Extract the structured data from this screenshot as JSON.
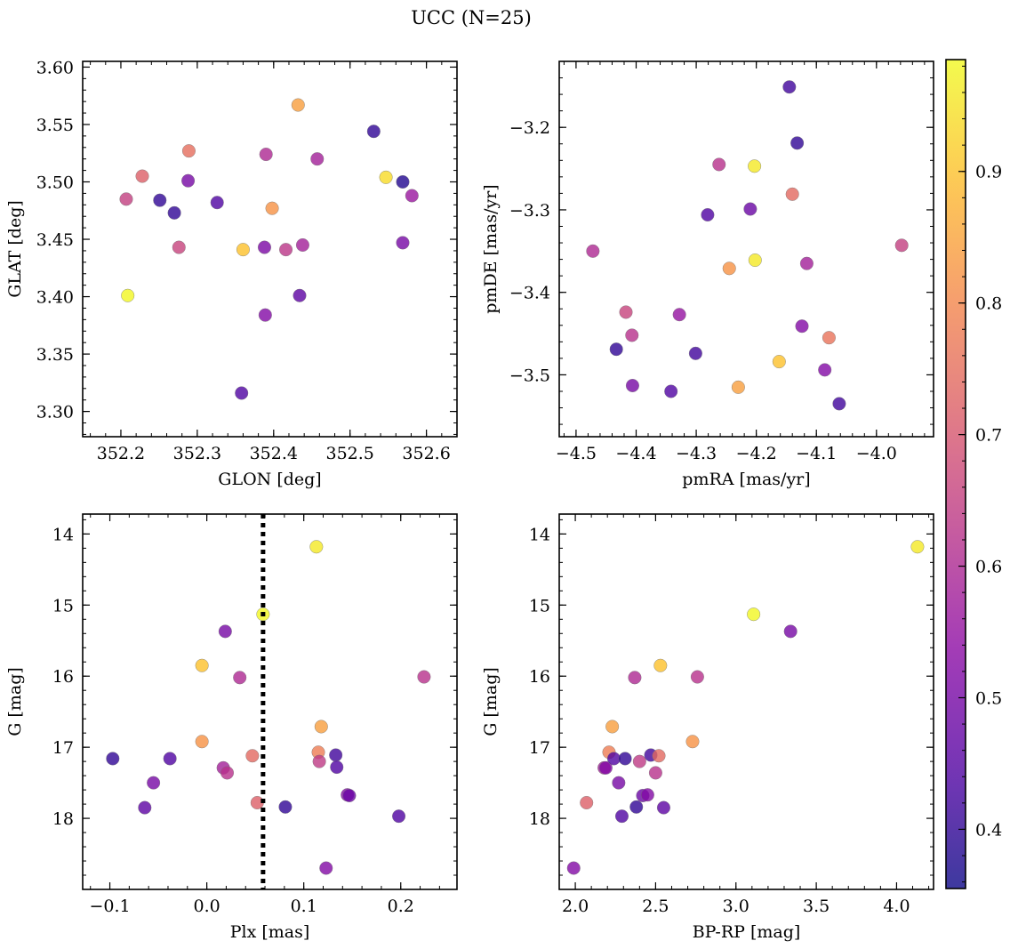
{
  "figure": {
    "title": "UCC (N=25)"
  },
  "colorbar": {
    "min": 0.355,
    "max": 0.985,
    "ticks": [
      0.4,
      0.5,
      0.6,
      0.7,
      0.8,
      0.9
    ],
    "tick_labels": [
      "0.4",
      "0.5",
      "0.6",
      "0.7",
      "0.8",
      "0.9"
    ],
    "colormap": "plasma",
    "colormap_stops": [
      "#0d0887",
      "#5302a3",
      "#8b0aa5",
      "#b83289",
      "#db5c68",
      "#f48849",
      "#febd2a",
      "#f0f921"
    ],
    "marker_alpha": 0.8
  },
  "chart_data": [
    {
      "type": "scatter",
      "name": "GLON-GLAT",
      "xlabel": "GLON [deg]",
      "ylabel": "GLAT [deg]",
      "xlim": [
        352.15,
        352.64
      ],
      "ylim": [
        3.278,
        3.605
      ],
      "y_inverted": false,
      "xticks": [
        352.2,
        352.3,
        352.4,
        352.5,
        352.6
      ],
      "xtick_labels": [
        "352.2",
        "352.3",
        "352.4",
        "352.5",
        "352.6"
      ],
      "yticks": [
        3.3,
        3.35,
        3.4,
        3.45,
        3.5,
        3.55,
        3.6
      ],
      "ytick_labels": [
        "3.30",
        "3.35",
        "3.40",
        "3.45",
        "3.50",
        "3.55",
        "3.60"
      ],
      "xminor": 0.02,
      "yminor": 0.01,
      "vline": null,
      "points": [
        {
          "x": 352.207,
          "y": 3.485,
          "c": 0.65
        },
        {
          "x": 352.228,
          "y": 3.505,
          "c": 0.72
        },
        {
          "x": 352.251,
          "y": 3.484,
          "c": 0.4
        },
        {
          "x": 352.27,
          "y": 3.473,
          "c": 0.4
        },
        {
          "x": 352.276,
          "y": 3.443,
          "c": 0.66
        },
        {
          "x": 352.288,
          "y": 3.501,
          "c": 0.5
        },
        {
          "x": 352.289,
          "y": 3.527,
          "c": 0.75
        },
        {
          "x": 352.209,
          "y": 3.401,
          "c": 0.98
        },
        {
          "x": 352.326,
          "y": 3.482,
          "c": 0.44
        },
        {
          "x": 352.36,
          "y": 3.441,
          "c": 0.9
        },
        {
          "x": 352.358,
          "y": 3.316,
          "c": 0.44
        },
        {
          "x": 352.389,
          "y": 3.384,
          "c": 0.52
        },
        {
          "x": 352.388,
          "y": 3.443,
          "c": 0.51
        },
        {
          "x": 352.39,
          "y": 3.524,
          "c": 0.6
        },
        {
          "x": 352.398,
          "y": 3.477,
          "c": 0.82
        },
        {
          "x": 352.416,
          "y": 3.441,
          "c": 0.63
        },
        {
          "x": 352.432,
          "y": 3.567,
          "c": 0.84
        },
        {
          "x": 352.434,
          "y": 3.401,
          "c": 0.46
        },
        {
          "x": 352.438,
          "y": 3.445,
          "c": 0.58
        },
        {
          "x": 352.457,
          "y": 3.52,
          "c": 0.58
        },
        {
          "x": 352.531,
          "y": 3.544,
          "c": 0.4
        },
        {
          "x": 352.547,
          "y": 3.504,
          "c": 0.94
        },
        {
          "x": 352.569,
          "y": 3.5,
          "c": 0.38
        },
        {
          "x": 352.569,
          "y": 3.447,
          "c": 0.5
        },
        {
          "x": 352.581,
          "y": 3.488,
          "c": 0.56
        }
      ]
    },
    {
      "type": "scatter",
      "name": "pmRA-pmDE",
      "xlabel": "pmRA [mas/yr]",
      "ylabel": "pmDE [mas/yr]",
      "xlim": [
        -4.528,
        -3.905
      ],
      "ylim": [
        -3.575,
        -3.12
      ],
      "y_inverted": false,
      "xticks": [
        -4.5,
        -4.4,
        -4.3,
        -4.2,
        -4.1,
        -4.0
      ],
      "xtick_labels": [
        "−4.5",
        "−4.4",
        "−4.3",
        "−4.2",
        "−4.1",
        "−4.0"
      ],
      "yticks": [
        -3.5,
        -3.4,
        -3.3,
        -3.2
      ],
      "ytick_labels": [
        "−3.5",
        "−3.4",
        "−3.3",
        "−3.2"
      ],
      "xminor": 0.02,
      "yminor": 0.02,
      "vline": null,
      "points": [
        {
          "x": -4.472,
          "y": -3.35,
          "c": 0.6
        },
        {
          "x": -4.433,
          "y": -3.469,
          "c": 0.4
        },
        {
          "x": -4.417,
          "y": -3.424,
          "c": 0.66
        },
        {
          "x": -4.407,
          "y": -3.452,
          "c": 0.62
        },
        {
          "x": -4.406,
          "y": -3.513,
          "c": 0.5
        },
        {
          "x": -4.342,
          "y": -3.52,
          "c": 0.44
        },
        {
          "x": -4.328,
          "y": -3.427,
          "c": 0.55
        },
        {
          "x": -4.301,
          "y": -3.474,
          "c": 0.42
        },
        {
          "x": -4.281,
          "y": -3.306,
          "c": 0.44
        },
        {
          "x": -4.262,
          "y": -3.245,
          "c": 0.62
        },
        {
          "x": -4.245,
          "y": -3.371,
          "c": 0.82
        },
        {
          "x": -4.23,
          "y": -3.515,
          "c": 0.84
        },
        {
          "x": -4.21,
          "y": -3.299,
          "c": 0.48
        },
        {
          "x": -4.203,
          "y": -3.247,
          "c": 0.96
        },
        {
          "x": -4.202,
          "y": -3.361,
          "c": 0.96
        },
        {
          "x": -4.162,
          "y": -3.484,
          "c": 0.9
        },
        {
          "x": -4.145,
          "y": -3.151,
          "c": 0.42
        },
        {
          "x": -4.14,
          "y": -3.281,
          "c": 0.74
        },
        {
          "x": -4.132,
          "y": -3.219,
          "c": 0.4
        },
        {
          "x": -4.124,
          "y": -3.441,
          "c": 0.52
        },
        {
          "x": -4.116,
          "y": -3.365,
          "c": 0.58
        },
        {
          "x": -4.086,
          "y": -3.494,
          "c": 0.52
        },
        {
          "x": -4.079,
          "y": -3.455,
          "c": 0.76
        },
        {
          "x": -4.062,
          "y": -3.535,
          "c": 0.42
        },
        {
          "x": -3.958,
          "y": -3.343,
          "c": 0.65
        }
      ]
    },
    {
      "type": "scatter",
      "name": "Plx-G",
      "xlabel": "Plx [mas]",
      "ylabel": "G [mag]",
      "xlim": [
        -0.128,
        0.258
      ],
      "ylim": [
        13.72,
        19.0
      ],
      "y_inverted": true,
      "xticks": [
        -0.1,
        0.0,
        0.1,
        0.2
      ],
      "xtick_labels": [
        "−0.1",
        "0.0",
        "0.1",
        "0.2"
      ],
      "yticks": [
        14,
        15,
        16,
        17,
        18
      ],
      "ytick_labels": [
        "14",
        "15",
        "16",
        "17",
        "18"
      ],
      "xminor": 0.02,
      "yminor": 0.2,
      "vline": 0.058,
      "points": [
        {
          "x": -0.097,
          "y": 17.16,
          "c": 0.4
        },
        {
          "x": -0.064,
          "y": 17.85,
          "c": 0.46
        },
        {
          "x": -0.055,
          "y": 17.5,
          "c": 0.5
        },
        {
          "x": -0.038,
          "y": 17.16,
          "c": 0.44
        },
        {
          "x": -0.005,
          "y": 15.85,
          "c": 0.9
        },
        {
          "x": -0.005,
          "y": 16.92,
          "c": 0.82
        },
        {
          "x": 0.017,
          "y": 17.29,
          "c": 0.58
        },
        {
          "x": 0.019,
          "y": 15.37,
          "c": 0.5
        },
        {
          "x": 0.021,
          "y": 17.36,
          "c": 0.62
        },
        {
          "x": 0.034,
          "y": 16.02,
          "c": 0.6
        },
        {
          "x": 0.047,
          "y": 17.12,
          "c": 0.74
        },
        {
          "x": 0.052,
          "y": 17.78,
          "c": 0.72
        },
        {
          "x": 0.058,
          "y": 15.13,
          "c": 0.98
        },
        {
          "x": 0.081,
          "y": 17.84,
          "c": 0.4
        },
        {
          "x": 0.113,
          "y": 14.18,
          "c": 0.96
        },
        {
          "x": 0.115,
          "y": 17.07,
          "c": 0.78
        },
        {
          "x": 0.116,
          "y": 17.2,
          "c": 0.64
        },
        {
          "x": 0.118,
          "y": 16.71,
          "c": 0.84
        },
        {
          "x": 0.123,
          "y": 18.7,
          "c": 0.52
        },
        {
          "x": 0.133,
          "y": 17.11,
          "c": 0.42
        },
        {
          "x": 0.134,
          "y": 17.28,
          "c": 0.44
        },
        {
          "x": 0.145,
          "y": 17.67,
          "c": 0.52
        },
        {
          "x": 0.147,
          "y": 17.68,
          "c": 0.48
        },
        {
          "x": 0.198,
          "y": 17.97,
          "c": 0.44
        },
        {
          "x": 0.224,
          "y": 16.01,
          "c": 0.62
        }
      ]
    },
    {
      "type": "scatter",
      "name": "BPRP-G",
      "xlabel": "BP-RP [mag]",
      "ylabel": "G [mag]",
      "xlim": [
        1.9,
        4.23
      ],
      "ylim": [
        13.72,
        19.0
      ],
      "y_inverted": true,
      "xticks": [
        2.0,
        2.5,
        3.0,
        3.5,
        4.0
      ],
      "xtick_labels": [
        "2.0",
        "2.5",
        "3.0",
        "3.5",
        "4.0"
      ],
      "yticks": [
        14,
        15,
        16,
        17,
        18
      ],
      "ytick_labels": [
        "14",
        "15",
        "16",
        "17",
        "18"
      ],
      "xminor": 0.1,
      "yminor": 0.2,
      "vline": null,
      "points": [
        {
          "x": 1.99,
          "y": 18.7,
          "c": 0.52
        },
        {
          "x": 2.07,
          "y": 17.78,
          "c": 0.72
        },
        {
          "x": 2.18,
          "y": 17.29,
          "c": 0.58
        },
        {
          "x": 2.19,
          "y": 17.29,
          "c": 0.52
        },
        {
          "x": 2.21,
          "y": 17.07,
          "c": 0.78
        },
        {
          "x": 2.23,
          "y": 16.71,
          "c": 0.84
        },
        {
          "x": 2.24,
          "y": 17.16,
          "c": 0.44
        },
        {
          "x": 2.27,
          "y": 17.5,
          "c": 0.5
        },
        {
          "x": 2.29,
          "y": 17.97,
          "c": 0.44
        },
        {
          "x": 2.31,
          "y": 17.16,
          "c": 0.4
        },
        {
          "x": 2.37,
          "y": 16.02,
          "c": 0.6
        },
        {
          "x": 2.38,
          "y": 17.84,
          "c": 0.4
        },
        {
          "x": 2.4,
          "y": 17.2,
          "c": 0.64
        },
        {
          "x": 2.42,
          "y": 17.68,
          "c": 0.48
        },
        {
          "x": 2.45,
          "y": 17.67,
          "c": 0.52
        },
        {
          "x": 2.47,
          "y": 17.11,
          "c": 0.42
        },
        {
          "x": 2.5,
          "y": 17.36,
          "c": 0.62
        },
        {
          "x": 2.52,
          "y": 17.12,
          "c": 0.74
        },
        {
          "x": 2.53,
          "y": 15.85,
          "c": 0.9
        },
        {
          "x": 2.55,
          "y": 17.85,
          "c": 0.46
        },
        {
          "x": 2.73,
          "y": 16.92,
          "c": 0.82
        },
        {
          "x": 2.76,
          "y": 16.01,
          "c": 0.62
        },
        {
          "x": 3.11,
          "y": 15.13,
          "c": 0.98
        },
        {
          "x": 3.34,
          "y": 15.37,
          "c": 0.5
        },
        {
          "x": 4.13,
          "y": 14.18,
          "c": 0.96
        }
      ]
    }
  ]
}
